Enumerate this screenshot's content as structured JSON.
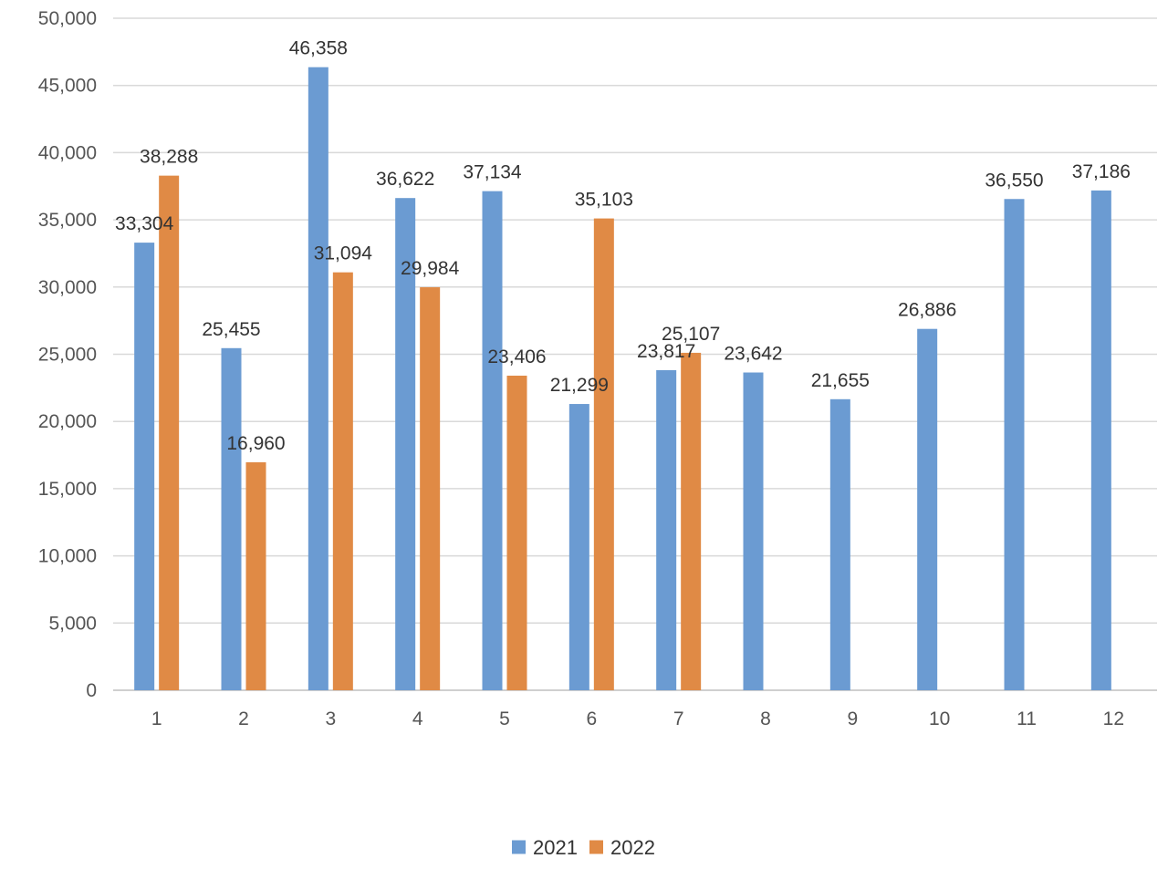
{
  "chart_data": {
    "type": "bar",
    "categories": [
      "1",
      "2",
      "3",
      "4",
      "5",
      "6",
      "7",
      "8",
      "9",
      "10",
      "11",
      "12"
    ],
    "series": [
      {
        "name": "2021",
        "color": "#6b9bd2",
        "values": [
          33304,
          25455,
          46358,
          36622,
          37134,
          21299,
          23817,
          23642,
          21655,
          26886,
          36550,
          37186
        ],
        "labels": [
          "33,304",
          "25,455",
          "46,358",
          "36,622",
          "37,134",
          "21,299",
          "23,817",
          "23,642",
          "21,655",
          "26,886",
          "36,550",
          "37,186"
        ]
      },
      {
        "name": "2022",
        "color": "#e08a45",
        "values": [
          38288,
          16960,
          31094,
          29984,
          23406,
          35103,
          25107,
          null,
          null,
          null,
          null,
          null
        ],
        "labels": [
          "38,288",
          "16,960",
          "31,094",
          "29,984",
          "23,406",
          "35,103",
          "25,107",
          "",
          "",
          "",
          "",
          ""
        ]
      }
    ],
    "ylim": [
      0,
      50000
    ],
    "yticks": [
      0,
      5000,
      10000,
      15000,
      20000,
      25000,
      30000,
      35000,
      40000,
      45000,
      50000
    ],
    "ytick_labels": [
      "0",
      "5,000",
      "10,000",
      "15,000",
      "20,000",
      "25,000",
      "30,000",
      "35,000",
      "40,000",
      "45,000",
      "50,000"
    ],
    "grid": true,
    "legend_position": "bottom-center",
    "title": "",
    "xlabel": "",
    "ylabel": ""
  }
}
